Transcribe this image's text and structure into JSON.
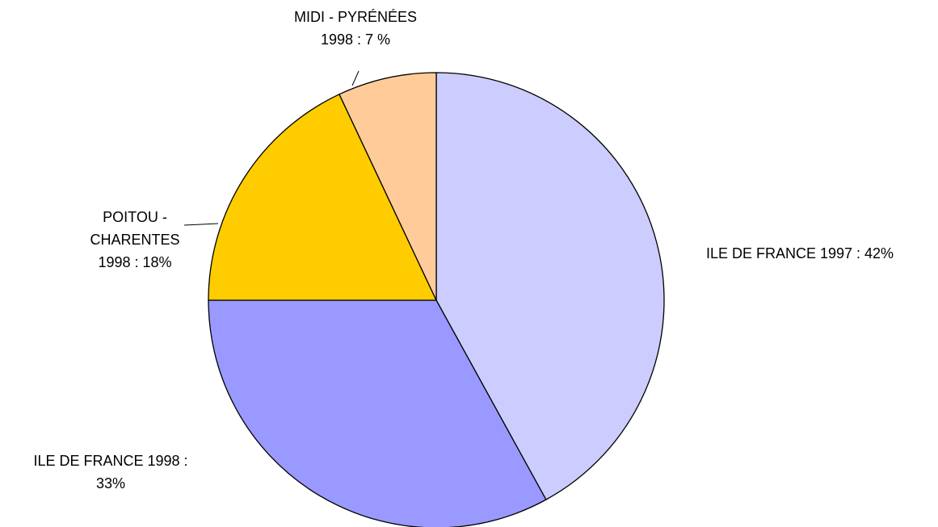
{
  "chart_data": {
    "type": "pie",
    "values": [
      42,
      33,
      18,
      7
    ],
    "value_labels": [
      [
        "ILE DE FRANCE 1997 : 42%"
      ],
      [
        "ILE DE FRANCE 1998 :",
        "33%"
      ],
      [
        "POITOU -",
        "CHARENTES",
        "1998 : 18%"
      ],
      [
        "MIDI - PYRÉNÉES",
        "1998 : 7 %"
      ]
    ],
    "colors": [
      "#ccccff",
      "#9999ff",
      "#ffcc00",
      "#ffcc99"
    ]
  }
}
